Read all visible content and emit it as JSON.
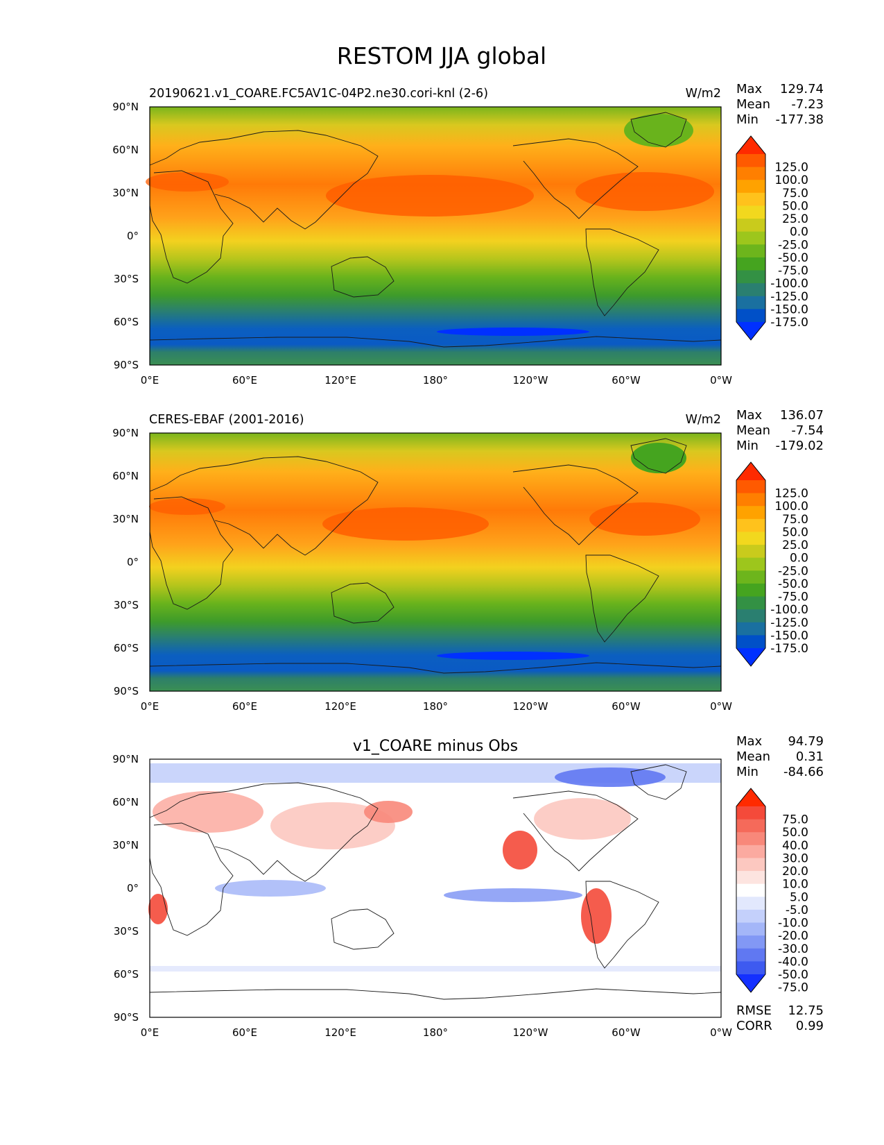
{
  "figure_title": "RESTOM JJA global",
  "axes": {
    "lat_ticks": [
      "90°N",
      "60°N",
      "30°N",
      "0°",
      "30°S",
      "60°S",
      "90°S"
    ],
    "lon_ticks": [
      "0°E",
      "60°E",
      "120°E",
      "180°",
      "120°W",
      "60°W",
      "0°W"
    ]
  },
  "panels": [
    {
      "id": "model",
      "title_left": "20190621.v1_COARE.FC5AV1C-04P2.ne30.cori-knl (2-6)",
      "title_center": "",
      "units": "W/m2",
      "stats": [
        {
          "label": "Max",
          "value": "129.74"
        },
        {
          "label": "Mean",
          "value": "-7.23"
        },
        {
          "label": "Min",
          "value": "-177.38"
        }
      ],
      "colorbar_type": "abs",
      "colorbar_labels": [
        "125.0",
        "100.0",
        "75.0",
        "50.0",
        "25.0",
        "0.0",
        "-25.0",
        "-50.0",
        "-75.0",
        "-100.0",
        "-125.0",
        "-150.0",
        "-175.0"
      ],
      "extra_stats": []
    },
    {
      "id": "obs",
      "title_left": "CERES-EBAF (2001-2016)",
      "title_center": "",
      "units": "W/m2",
      "stats": [
        {
          "label": "Max",
          "value": "136.07"
        },
        {
          "label": "Mean",
          "value": "-7.54"
        },
        {
          "label": "Min",
          "value": "-179.02"
        }
      ],
      "colorbar_type": "abs",
      "colorbar_labels": [
        "125.0",
        "100.0",
        "75.0",
        "50.0",
        "25.0",
        "0.0",
        "-25.0",
        "-50.0",
        "-75.0",
        "-100.0",
        "-125.0",
        "-150.0",
        "-175.0"
      ],
      "extra_stats": []
    },
    {
      "id": "diff",
      "title_left": "",
      "title_center": "v1_COARE minus Obs",
      "units": "",
      "stats": [
        {
          "label": "Max",
          "value": "94.79"
        },
        {
          "label": "Mean",
          "value": "0.31"
        },
        {
          "label": "Min",
          "value": "-84.66"
        }
      ],
      "colorbar_type": "diff",
      "colorbar_labels": [
        "75.0",
        "50.0",
        "40.0",
        "30.0",
        "20.0",
        "10.0",
        "5.0",
        "-5.0",
        "-10.0",
        "-20.0",
        "-30.0",
        "-40.0",
        "-50.0",
        "-75.0"
      ],
      "extra_stats": [
        {
          "label": "RMSE",
          "value": "12.75"
        },
        {
          "label": "CORR",
          "value": "0.99"
        }
      ]
    }
  ],
  "colors": {
    "abs_scale": [
      "#ff2a00",
      "#ff5a00",
      "#ff7f00",
      "#ffa200",
      "#ffc21c",
      "#f2d81e",
      "#c9cb1c",
      "#9dc61c",
      "#6db51c",
      "#45a41f",
      "#339144",
      "#2a7f70",
      "#1a70a0",
      "#0050c8",
      "#0030ff"
    ],
    "diff_scale": [
      "#ff2a00",
      "#f44a3a",
      "#f56a5a",
      "#f8887a",
      "#fbaaa0",
      "#fcc8c0",
      "#fde4e0",
      "#ffffff",
      "#e2e8fd",
      "#c4d0fb",
      "#a4b6f8",
      "#8298f5",
      "#6078f2",
      "#3e5af0",
      "#1430ff"
    ],
    "coast": "#1a1a1a"
  }
}
